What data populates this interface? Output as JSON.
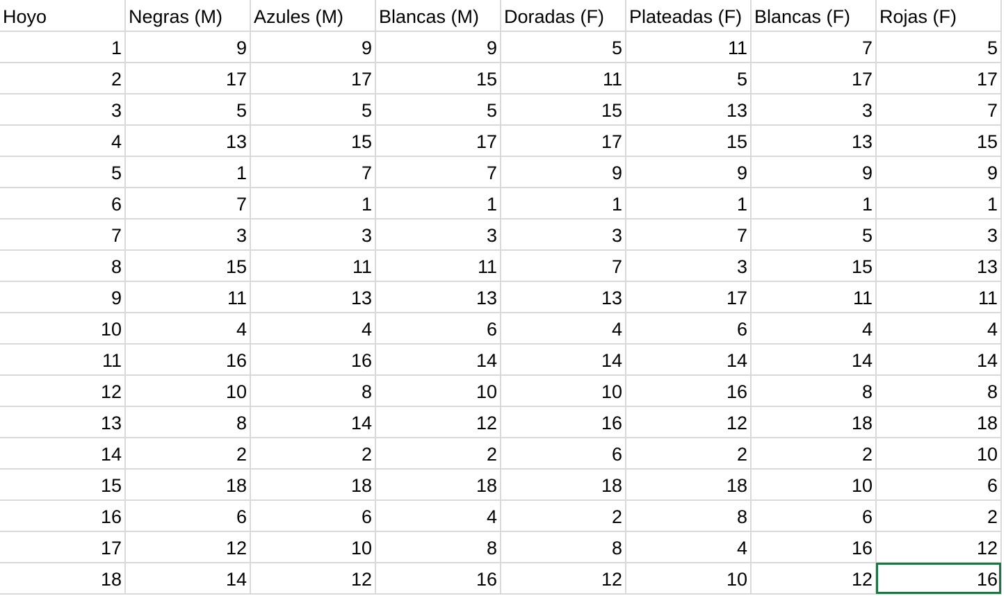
{
  "sheet": {
    "headers": [
      "Hoyo",
      "Negras (M)",
      "Azules (M)",
      "Blancas (M)",
      "Doradas (F)",
      "Plateadas (F)",
      "Blancas (F)",
      "Rojas (F)"
    ],
    "rows": [
      [
        "1",
        "9",
        "9",
        "9",
        "5",
        "11",
        "7",
        "5"
      ],
      [
        "2",
        "17",
        "17",
        "15",
        "11",
        "5",
        "17",
        "17"
      ],
      [
        "3",
        "5",
        "5",
        "5",
        "15",
        "13",
        "3",
        "7"
      ],
      [
        "4",
        "13",
        "15",
        "17",
        "17",
        "15",
        "13",
        "15"
      ],
      [
        "5",
        "1",
        "7",
        "7",
        "9",
        "9",
        "9",
        "9"
      ],
      [
        "6",
        "7",
        "1",
        "1",
        "1",
        "1",
        "1",
        "1"
      ],
      [
        "7",
        "3",
        "3",
        "3",
        "3",
        "7",
        "5",
        "3"
      ],
      [
        "8",
        "15",
        "11",
        "11",
        "7",
        "3",
        "15",
        "13"
      ],
      [
        "9",
        "11",
        "13",
        "13",
        "13",
        "17",
        "11",
        "11"
      ],
      [
        "10",
        "4",
        "4",
        "6",
        "4",
        "6",
        "4",
        "4"
      ],
      [
        "11",
        "16",
        "16",
        "14",
        "14",
        "14",
        "14",
        "14"
      ],
      [
        "12",
        "10",
        "8",
        "10",
        "10",
        "16",
        "8",
        "8"
      ],
      [
        "13",
        "8",
        "14",
        "12",
        "16",
        "12",
        "18",
        "18"
      ],
      [
        "14",
        "2",
        "2",
        "2",
        "6",
        "2",
        "2",
        "10"
      ],
      [
        "15",
        "18",
        "18",
        "18",
        "18",
        "18",
        "10",
        "6"
      ],
      [
        "16",
        "6",
        "6",
        "4",
        "2",
        "8",
        "6",
        "2"
      ],
      [
        "17",
        "12",
        "10",
        "8",
        "8",
        "4",
        "16",
        "12"
      ],
      [
        "18",
        "14",
        "12",
        "16",
        "12",
        "10",
        "12",
        "16"
      ]
    ],
    "gridline_color": "#d9d9d9",
    "selection_color": "#217346"
  }
}
